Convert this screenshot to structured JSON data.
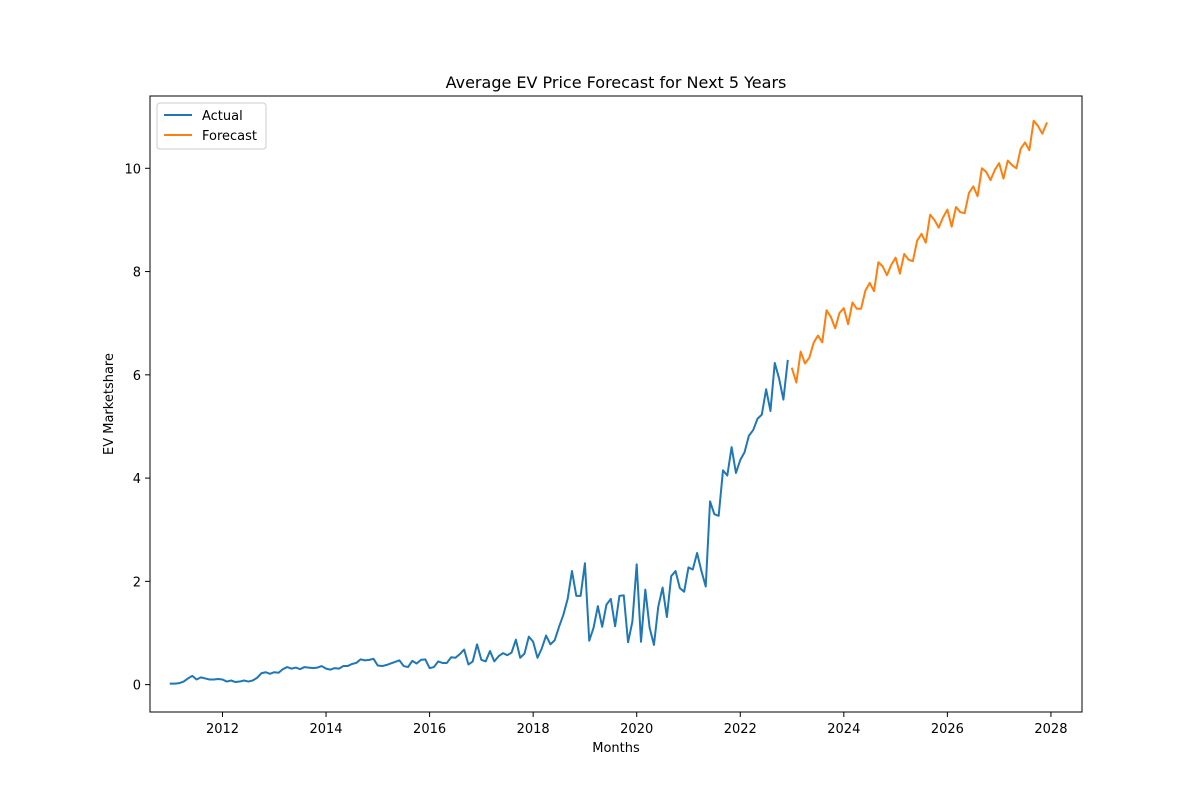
{
  "chart_data": {
    "type": "line",
    "title": "Average EV Price Forecast for Next 5 Years",
    "xlabel": "Months",
    "ylabel": "EV Marketshare",
    "xlim": [
      2010.6,
      2028.6
    ],
    "ylim": [
      -0.53,
      11.4
    ],
    "xticks": [
      2012,
      2014,
      2016,
      2018,
      2020,
      2022,
      2024,
      2026,
      2028
    ],
    "yticks": [
      0,
      2,
      4,
      6,
      8,
      10
    ],
    "legend": "top-left",
    "grid": false,
    "colors": {
      "actual": "#1f77b4",
      "forecast": "#ff7f0e"
    },
    "series": [
      {
        "name": "Actual",
        "x_start": 2011.0,
        "x_step": 0.08333,
        "values": [
          0.02,
          0.02,
          0.03,
          0.06,
          0.12,
          0.17,
          0.1,
          0.14,
          0.12,
          0.1,
          0.1,
          0.11,
          0.1,
          0.06,
          0.08,
          0.05,
          0.06,
          0.08,
          0.06,
          0.08,
          0.13,
          0.22,
          0.24,
          0.21,
          0.24,
          0.23,
          0.3,
          0.34,
          0.31,
          0.33,
          0.3,
          0.34,
          0.33,
          0.32,
          0.33,
          0.36,
          0.31,
          0.29,
          0.32,
          0.31,
          0.36,
          0.36,
          0.4,
          0.42,
          0.49,
          0.47,
          0.48,
          0.5,
          0.37,
          0.36,
          0.38,
          0.41,
          0.44,
          0.47,
          0.36,
          0.34,
          0.46,
          0.41,
          0.48,
          0.49,
          0.32,
          0.34,
          0.45,
          0.42,
          0.42,
          0.53,
          0.52,
          0.59,
          0.68,
          0.39,
          0.45,
          0.78,
          0.48,
          0.45,
          0.65,
          0.45,
          0.55,
          0.61,
          0.57,
          0.62,
          0.87,
          0.52,
          0.6,
          0.93,
          0.83,
          0.52,
          0.7,
          0.95,
          0.78,
          0.86,
          1.12,
          1.35,
          1.66,
          2.2,
          1.72,
          1.72,
          2.35,
          0.85,
          1.1,
          1.52,
          1.12,
          1.55,
          1.66,
          1.13,
          1.72,
          1.73,
          0.82,
          1.22,
          2.33,
          0.83,
          1.84,
          1.1,
          0.77,
          1.51,
          1.88,
          1.31,
          2.1,
          2.2,
          1.87,
          1.8,
          2.27,
          2.23,
          2.55,
          2.2,
          1.9,
          3.55,
          3.3,
          3.27,
          4.15,
          4.05,
          4.6,
          4.1,
          4.35,
          4.5,
          4.82,
          4.93,
          5.15,
          5.23,
          5.72,
          5.3,
          6.23,
          5.93,
          5.52,
          6.27
        ]
      },
      {
        "name": "Forecast",
        "x_start": 2023.0,
        "x_step": 0.08333,
        "values": [
          6.12,
          5.85,
          6.45,
          6.22,
          6.33,
          6.62,
          6.76,
          6.63,
          7.25,
          7.12,
          6.9,
          7.2,
          7.29,
          6.98,
          7.4,
          7.28,
          7.28,
          7.63,
          7.78,
          7.62,
          8.18,
          8.1,
          7.93,
          8.13,
          8.27,
          7.96,
          8.34,
          8.23,
          8.2,
          8.6,
          8.73,
          8.56,
          9.1,
          9.0,
          8.85,
          9.05,
          9.2,
          8.87,
          9.25,
          9.15,
          9.13,
          9.52,
          9.65,
          9.46,
          10.0,
          9.93,
          9.77,
          9.97,
          10.1,
          9.8,
          10.15,
          10.06,
          10.0,
          10.38,
          10.5,
          10.35,
          10.92,
          10.82,
          10.67,
          10.87
        ]
      }
    ]
  }
}
